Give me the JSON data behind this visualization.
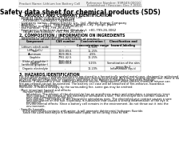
{
  "title": "Safety data sheet for chemical products (SDS)",
  "header_left": "Product Name: Lithium Ion Battery Cell",
  "header_right_line1": "Reference Number: 99R049-00010",
  "header_right_line2": "Established / Revision: Dec.7.2010",
  "section1_title": "1. PRODUCT AND COMPANY IDENTIFICATION",
  "section1_lines": [
    "· Product name: Lithium Ion Battery Cell",
    "· Product code: Cylindrical-type cell",
    "    04168600, 04168650, 04168654",
    "· Company name:   Sanyo Electric Co., Ltd.  Mobile Energy Company",
    "· Address:         2221  Kaminaizen, Sumoto-City, Hyogo, Japan",
    "· Telephone number:    +81-799-26-4111",
    "· Fax number:  +81-799-26-4128",
    "· Emergency telephone number (Weekday): +81-799-26-3062",
    "    (Night and holiday): +81-799-26-4101"
  ],
  "section2_title": "2. COMPOSITION / INFORMATION ON INGREDIENTS",
  "section2_intro": "· Substance or preparation: Preparation",
  "section2_sub": "· Information about the chemical nature of product:",
  "table_headers": [
    "Component",
    "CAS number",
    "Concentration /\nConcentration range",
    "Classification and\nhazard labeling"
  ],
  "table_rows": [
    [
      "Lithium cobalt oxide\n(LiMn₂CoO₂)",
      "-",
      "30-60%",
      "-"
    ],
    [
      "Iron",
      "7439-89-6",
      "15-25%",
      "-"
    ],
    [
      "Aluminum",
      "7429-90-5",
      "2-5%",
      "-"
    ],
    [
      "Graphite\n(flake of graphite¹)\n(artificial graphite²)",
      "7782-42-5\n7440-44-0",
      "10-25%",
      "-"
    ],
    [
      "Copper",
      "7440-50-8",
      "5-15%",
      "Sensitization of the skin\ngroup No.2"
    ],
    [
      "Organic electrolyte",
      "-",
      "10-20%",
      "Inflammable liquid"
    ]
  ],
  "section3_title": "3. HAZARDS IDENTIFICATION",
  "section3_text": [
    "For the battery cell, chemical substances are stored in a hermetically sealed metal case, designed to withstand",
    "temperature changes and electro-ionic conditions during normal use. As a result, during normal use, there is no",
    "physical danger of ignition or explosion and there is no danger of hazardous materials leakage.",
    "However, if exposed to a fire, added mechanical shocks, decomposed, wired electro-chemical misuse can",
    "fire gas release cannot be operated. The battery cell case will be breached of fire-enhance, hazardous",
    "materials may be released.",
    "Moreover, if heated strongly by the surrounding fire, some gas may be emitted.",
    "",
    "· Most important hazard and effects:",
    "    Human health effects:",
    "        Inhalation: The release of the electrolyte has an anesthesia action and stimulates a respiratory tract.",
    "        Skin contact: The release of the electrolyte stimulates a skin. The electrolyte skin contact causes a",
    "        sore and stimulation on the skin.",
    "        Eye contact: The release of the electrolyte stimulates eyes. The electrolyte eye contact causes a sore",
    "        and stimulation on the eye. Especially, a substance that causes a strong inflammation of the eye is",
    "        contained.",
    "        Environmental effects: Since a battery cell remains in the environment, do not throw out it into the",
    "        environment.",
    "",
    "· Specific hazards:",
    "    If the electrolyte contacts with water, it will generate detrimental hydrogen fluoride.",
    "    Since the used electrolyte is inflammable liquid, do not bring close to fire."
  ],
  "bg_color": "#ffffff",
  "text_color": "#000000",
  "header_bg": "#e8e8e8",
  "table_header_bg": "#d0d0d0",
  "border_color": "#888888",
  "title_fontsize": 5.5,
  "body_fontsize": 3.2,
  "small_fontsize": 2.8
}
